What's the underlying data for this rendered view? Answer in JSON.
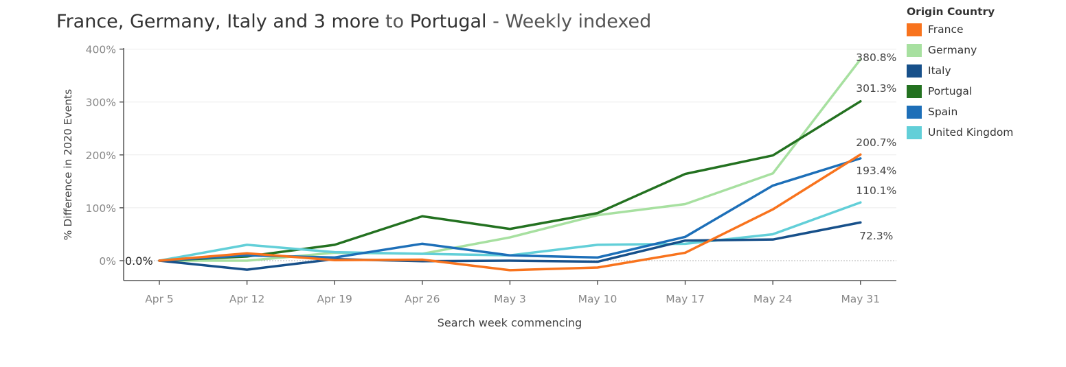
{
  "title": {
    "part1": "France, Germany, Italy and 3 more",
    "part2": " to ",
    "part3": "Portugal",
    "part4": " - Weekly indexed"
  },
  "legend": {
    "title": "Origin Country"
  },
  "colors": {
    "France": "#f8731d",
    "Germany": "#a7e0a0",
    "Italy": "#17508a",
    "Portugal": "#237120",
    "Spain": "#1d6fb8",
    "United Kingdom": "#62cfd8"
  },
  "chart_data": {
    "type": "line",
    "title": "France, Germany, Italy and 3 more to Portugal - Weekly indexed",
    "xlabel": "Search week commencing",
    "ylabel": "% Difference in 2020 Events",
    "categories": [
      "Apr 5",
      "Apr 12",
      "Apr 19",
      "Apr 26",
      "May 3",
      "May 10",
      "May 17",
      "May 24",
      "May 31"
    ],
    "ylim": [
      -38,
      405
    ],
    "yticks": [
      0,
      100,
      200,
      300,
      400
    ],
    "ytick_labels": [
      "0%",
      "100%",
      "200%",
      "300%",
      "400%"
    ],
    "zero_label": "0.0%",
    "legend_position": "right",
    "series": [
      {
        "name": "France",
        "values": [
          0,
          14,
          1,
          2,
          -18,
          -13,
          15,
          97,
          200.7
        ],
        "end_label": "200.7%"
      },
      {
        "name": "Germany",
        "values": [
          0,
          0,
          15,
          13,
          44,
          86,
          107,
          165,
          380.8
        ],
        "end_label": "380.8%"
      },
      {
        "name": "Italy",
        "values": [
          0,
          -17,
          3,
          -1,
          0,
          -2,
          38,
          40,
          72.3
        ],
        "end_label": "72.3%"
      },
      {
        "name": "Portugal",
        "values": [
          0,
          8,
          30,
          84,
          60,
          90,
          164,
          199,
          301.3
        ],
        "end_label": "301.3%"
      },
      {
        "name": "Spain",
        "values": [
          0,
          10,
          6,
          32,
          10,
          6,
          45,
          142,
          193.4
        ],
        "end_label": "193.4%"
      },
      {
        "name": "United Kingdom",
        "values": [
          0,
          30,
          16,
          13,
          10,
          30,
          32,
          50,
          110.1
        ],
        "end_label": "110.1%"
      }
    ]
  }
}
